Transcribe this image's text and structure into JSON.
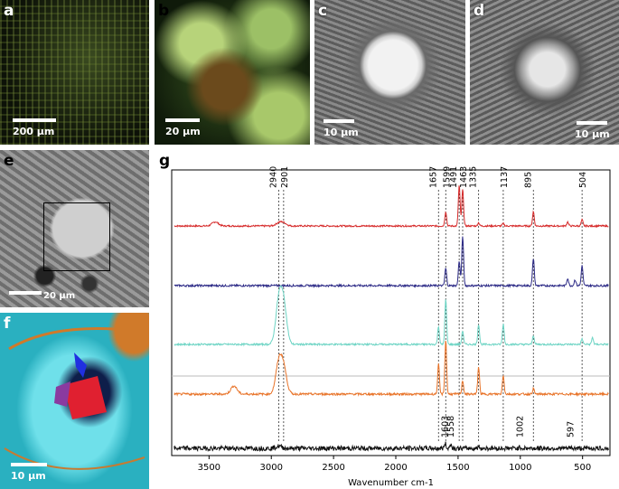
{
  "panels": {
    "a": {
      "label": "a",
      "scale": "200 µm"
    },
    "b": {
      "label": "b",
      "scale": "20 µm"
    },
    "c": {
      "label": "c",
      "scale": "10 µm"
    },
    "d": {
      "label": "d",
      "scale": "10 µm"
    },
    "e": {
      "label": "e",
      "scale": "20 µm"
    },
    "f": {
      "label": "f",
      "scale": "10 µm"
    },
    "g": {
      "label": "g"
    }
  },
  "colors": {
    "red": "#d62b2b",
    "navy": "#2c2a86",
    "teal": "#6dd4c4",
    "orange": "#e8742a",
    "black": "#111111"
  },
  "chart_data": {
    "type": "line",
    "xlabel": "Wavenumber cm-1",
    "xlim": [
      3800,
      280
    ],
    "x_reversed": true,
    "x_ticks": [
      3500,
      3000,
      2500,
      2000,
      1500,
      1000,
      500
    ],
    "series": [
      {
        "color": "red",
        "peaks": [
          [
            3450,
            0.1
          ],
          [
            2940,
            0.07
          ],
          [
            2901,
            0.07
          ],
          [
            1599,
            0.35
          ],
          [
            1491,
            1.0
          ],
          [
            1463,
            0.9
          ],
          [
            1335,
            0.08
          ],
          [
            1137,
            0.06
          ],
          [
            895,
            0.35
          ],
          [
            620,
            0.1
          ],
          [
            504,
            0.15
          ]
        ]
      },
      {
        "color": "navy",
        "peaks": [
          [
            1599,
            0.35
          ],
          [
            1491,
            0.5
          ],
          [
            1463,
            1.0
          ],
          [
            895,
            0.55
          ],
          [
            620,
            0.15
          ],
          [
            560,
            0.12
          ],
          [
            504,
            0.4
          ]
        ]
      },
      {
        "color": "teal",
        "peaks": [
          [
            2940,
            0.9
          ],
          [
            2901,
            0.85
          ],
          [
            1657,
            0.4
          ],
          [
            1599,
            1.0
          ],
          [
            1463,
            0.3
          ],
          [
            1335,
            0.45
          ],
          [
            1137,
            0.45
          ],
          [
            895,
            0.2
          ],
          [
            504,
            0.12
          ],
          [
            420,
            0.15
          ]
        ]
      },
      {
        "color": "orange",
        "peaks": [
          [
            3300,
            0.15
          ],
          [
            2940,
            0.55
          ],
          [
            2901,
            0.45
          ],
          [
            1657,
            0.55
          ],
          [
            1599,
            1.0
          ],
          [
            1463,
            0.25
          ],
          [
            1335,
            0.5
          ],
          [
            1137,
            0.35
          ],
          [
            895,
            0.1
          ]
        ]
      },
      {
        "color": "black",
        "peaks": [
          [
            2940,
            0.15
          ],
          [
            1603,
            0.35
          ],
          [
            1558,
            0.3
          ],
          [
            1335,
            0.12
          ],
          [
            1002,
            0.1
          ],
          [
            597,
            0.05
          ]
        ]
      }
    ],
    "annotations_top": [
      "2940",
      "2901",
      "1657",
      "1599",
      "1491",
      "1463",
      "1335",
      "1137",
      "895",
      "504"
    ],
    "annotation_positions_top": [
      2940,
      2901,
      1657,
      1599,
      1491,
      1463,
      1335,
      1137,
      895,
      504
    ],
    "annotations_bottom": [
      "1603",
      "1558",
      "1002",
      "597"
    ],
    "annotation_positions_bottom": [
      1603,
      1558,
      1002,
      597
    ]
  }
}
